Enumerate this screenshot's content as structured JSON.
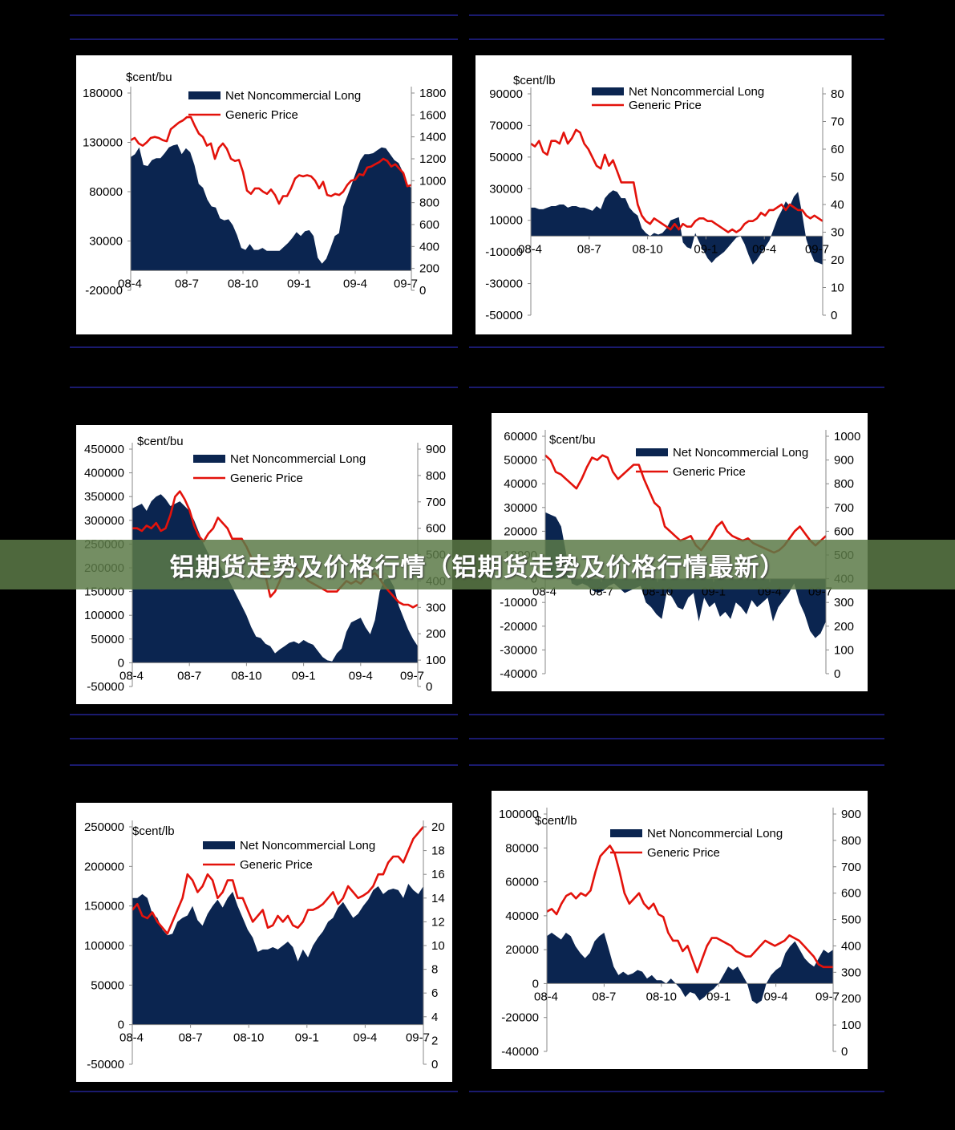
{
  "title": "铝期货走势及价格行情（铝期货走势及价格行情最新）",
  "colors": {
    "area": "#0b2550",
    "price": "#e3120b",
    "rule": "#1a1a6e",
    "background": "#000000"
  },
  "chart_data": [
    {
      "type": "area",
      "unit": "$cent/bu",
      "series": [
        {
          "name": "Net Noncommercial Long",
          "axis": "left",
          "values": [
            115000,
            118000,
            125000,
            107000,
            106000,
            112000,
            114000,
            114000,
            119000,
            125000,
            127000,
            128000,
            118000,
            124000,
            120000,
            107000,
            88000,
            84000,
            72000,
            65000,
            64000,
            53000,
            51000,
            52000,
            46000,
            36000,
            23000,
            21000,
            27000,
            21000,
            21000,
            23000,
            20000,
            20000,
            20000,
            20000,
            24000,
            28000,
            33000,
            39000,
            35000,
            40000,
            41000,
            35000,
            13000,
            7000,
            12000,
            23000,
            35000,
            38000,
            65000,
            76000,
            88000,
            100000,
            112000,
            118000,
            118000,
            119000,
            122000,
            125000,
            124000,
            118000,
            112000,
            109000,
            100000,
            87000,
            84000
          ]
        },
        {
          "name": "Generic Price",
          "axis": "right",
          "values": [
            1370,
            1390,
            1340,
            1320,
            1350,
            1390,
            1400,
            1390,
            1370,
            1360,
            1470,
            1500,
            1530,
            1550,
            1580,
            1580,
            1500,
            1430,
            1400,
            1320,
            1340,
            1200,
            1300,
            1340,
            1290,
            1200,
            1180,
            1190,
            1080,
            910,
            880,
            930,
            930,
            900,
            880,
            920,
            870,
            790,
            860,
            860,
            930,
            1020,
            1050,
            1040,
            1050,
            1040,
            1000,
            930,
            990,
            870,
            860,
            880,
            870,
            900,
            960,
            1000,
            1010,
            1060,
            1050,
            1120,
            1130,
            1150,
            1170,
            1200,
            1180,
            1130,
            1150,
            1110,
            1070,
            950,
            960
          ]
        }
      ],
      "x_ticks": [
        "08-4",
        "08-7",
        "08-10",
        "09-1",
        "09-4",
        "09-7"
      ],
      "y_left": {
        "min": -20000,
        "max": 180000,
        "ticks": [
          180000,
          130000,
          80000,
          30000,
          -20000
        ]
      },
      "y_right": {
        "min": 0,
        "max": 1800,
        "ticks": [
          1800,
          1600,
          1400,
          1200,
          1000,
          800,
          600,
          400,
          200,
          0
        ]
      }
    },
    {
      "type": "area",
      "unit": "$cent/lb",
      "series": [
        {
          "name": "Net Noncommercial Long",
          "axis": "left",
          "values": [
            18000,
            18000,
            17000,
            17000,
            18000,
            19000,
            19000,
            20000,
            20000,
            18000,
            19000,
            19000,
            18000,
            18000,
            17000,
            16000,
            19000,
            17000,
            24000,
            27000,
            29000,
            28000,
            24000,
            24000,
            18000,
            15000,
            13000,
            5000,
            2000,
            0,
            2000,
            1000,
            2000,
            5000,
            10000,
            11000,
            12000,
            -4000,
            -7000,
            -8000,
            2000,
            -4000,
            -9000,
            -14000,
            -17000,
            -14000,
            -12000,
            -10000,
            -7000,
            -4000,
            -1000,
            0,
            -5000,
            -12000,
            -18000,
            -15000,
            -11000,
            -7000,
            -3000,
            4000,
            11000,
            16000,
            22000,
            19000,
            25000,
            28000,
            14000,
            -2000,
            -10000,
            -16000,
            -17000,
            -18000
          ]
        },
        {
          "name": "Generic Price",
          "axis": "right",
          "values": [
            62,
            61,
            63,
            59,
            58,
            63,
            63,
            62,
            66,
            62,
            64,
            67,
            66,
            62,
            60,
            57,
            54,
            53,
            58,
            54,
            56,
            52,
            48,
            48,
            48,
            48,
            40,
            36,
            34,
            33,
            35,
            34,
            33,
            32,
            31,
            33,
            31,
            33,
            32,
            32,
            34,
            35,
            35,
            34,
            34,
            33,
            32,
            31,
            30,
            31,
            30,
            31,
            33,
            34,
            34,
            35,
            37,
            36,
            38,
            38,
            39,
            40,
            38,
            40,
            39,
            38,
            38,
            36,
            35,
            36,
            35,
            34
          ]
        }
      ],
      "x_ticks": [
        "08-4",
        "08-7",
        "08-10",
        "09-1",
        "09-4",
        "09-7"
      ],
      "y_left": {
        "min": -50000,
        "max": 90000,
        "ticks": [
          90000,
          70000,
          50000,
          30000,
          10000,
          -10000,
          -30000,
          -50000
        ]
      },
      "y_right": {
        "min": 0,
        "max": 80,
        "ticks": [
          80,
          70,
          60,
          50,
          40,
          30,
          20,
          10,
          0
        ]
      }
    },
    {
      "type": "area",
      "unit": "$cent/bu",
      "series": [
        {
          "name": "Net Noncommercial Long",
          "axis": "left",
          "values": [
            325000,
            330000,
            335000,
            320000,
            340000,
            350000,
            355000,
            345000,
            330000,
            335000,
            340000,
            330000,
            320000,
            300000,
            275000,
            250000,
            230000,
            215000,
            210000,
            195000,
            180000,
            160000,
            140000,
            120000,
            100000,
            75000,
            55000,
            52000,
            40000,
            35000,
            20000,
            28000,
            35000,
            42000,
            45000,
            40000,
            48000,
            42000,
            38000,
            25000,
            12000,
            5000,
            3000,
            20000,
            30000,
            65000,
            85000,
            90000,
            95000,
            75000,
            60000,
            90000,
            150000,
            175000,
            178000,
            160000,
            120000,
            95000,
            70000,
            50000,
            35000
          ]
        },
        {
          "name": "Generic Price",
          "axis": "right",
          "values": [
            600,
            600,
            590,
            610,
            600,
            620,
            590,
            600,
            650,
            720,
            740,
            710,
            670,
            610,
            570,
            550,
            580,
            600,
            640,
            620,
            600,
            560,
            560,
            560,
            530,
            490,
            460,
            440,
            420,
            340,
            360,
            400,
            450,
            470,
            460,
            440,
            420,
            400,
            390,
            380,
            370,
            360,
            360,
            360,
            380,
            400,
            390,
            400,
            390,
            410,
            420,
            430,
            410,
            380,
            360,
            340,
            320,
            310,
            310,
            300,
            310
          ]
        }
      ],
      "x_ticks": [
        "08-4",
        "08-7",
        "08-10",
        "09-1",
        "09-4",
        "09-7"
      ],
      "y_left": {
        "min": -50000,
        "max": 450000,
        "ticks": [
          450000,
          400000,
          350000,
          300000,
          250000,
          200000,
          150000,
          100000,
          50000,
          0,
          -50000
        ]
      },
      "y_right": {
        "min": 0,
        "max": 900,
        "ticks": [
          900,
          800,
          700,
          600,
          500,
          400,
          300,
          200,
          100,
          0
        ]
      }
    },
    {
      "type": "area",
      "unit": "$cent/bu",
      "series": [
        {
          "name": "Net Noncommercial Long",
          "axis": "left",
          "values": [
            28000,
            27000,
            26000,
            22000,
            10000,
            -2000,
            -3000,
            -2000,
            -3000,
            -5000,
            -6000,
            -5000,
            -3000,
            -2000,
            -4000,
            -6000,
            -5000,
            -4000,
            -3000,
            -10000,
            -12000,
            -15000,
            -17000,
            -5000,
            -8000,
            -12000,
            -13000,
            -8000,
            -6000,
            -18000,
            -8000,
            -12000,
            -10000,
            -16000,
            -14000,
            -17000,
            -10000,
            -12000,
            -15000,
            -9000,
            -12000,
            -10000,
            -8000,
            -18000,
            -12000,
            -9000,
            -6000,
            -2000,
            -10000,
            -15000,
            -22000,
            -25000,
            -23000,
            -18000
          ]
        },
        {
          "name": "Generic Price",
          "axis": "right",
          "values": [
            920,
            900,
            850,
            840,
            820,
            800,
            780,
            820,
            870,
            910,
            900,
            920,
            910,
            850,
            820,
            840,
            860,
            880,
            880,
            820,
            770,
            720,
            700,
            620,
            600,
            580,
            560,
            570,
            580,
            540,
            520,
            550,
            580,
            620,
            640,
            600,
            580,
            570,
            560,
            570,
            550,
            540,
            530,
            520,
            510,
            520,
            540,
            570,
            600,
            620,
            590,
            560,
            540,
            560,
            580
          ]
        }
      ],
      "x_ticks": [
        "08-4",
        "08-7",
        "08-10",
        "09-1",
        "09-4",
        "09-7"
      ],
      "y_left": {
        "min": -40000,
        "max": 60000,
        "ticks": [
          60000,
          50000,
          40000,
          30000,
          20000,
          10000,
          0,
          -10000,
          -20000,
          -30000,
          -40000
        ]
      },
      "y_right": {
        "min": 0,
        "max": 1000,
        "ticks": [
          1000,
          900,
          800,
          700,
          600,
          500,
          400,
          300,
          200,
          100,
          0
        ]
      }
    },
    {
      "type": "area",
      "unit": "$cent/lb",
      "series": [
        {
          "name": "Net Noncommercial Long",
          "axis": "left",
          "values": [
            160000,
            160000,
            165000,
            160000,
            140000,
            135000,
            120000,
            113000,
            115000,
            130000,
            135000,
            138000,
            150000,
            132000,
            125000,
            140000,
            150000,
            158000,
            148000,
            160000,
            168000,
            150000,
            135000,
            120000,
            110000,
            92000,
            95000,
            95000,
            98000,
            95000,
            100000,
            105000,
            98000,
            80000,
            95000,
            85000,
            100000,
            110000,
            118000,
            130000,
            135000,
            148000,
            155000,
            145000,
            135000,
            140000,
            150000,
            158000,
            170000,
            175000,
            165000,
            170000,
            172000,
            170000,
            160000,
            178000,
            170000,
            165000,
            175000
          ]
        },
        {
          "name": "Generic Price",
          "axis": "right",
          "values": [
            13,
            13.5,
            12.5,
            12.3,
            12.8,
            12,
            11.5,
            11,
            12,
            13,
            14,
            16,
            15.5,
            14.5,
            15,
            16,
            15.5,
            14,
            14.5,
            15.5,
            15.5,
            14,
            14,
            13,
            12,
            12.5,
            13,
            11.5,
            11.7,
            12.5,
            12,
            12.5,
            11.7,
            11.5,
            12,
            13,
            13,
            13.2,
            13.5,
            14,
            14.5,
            13.5,
            14,
            15,
            14.5,
            14,
            14.2,
            14.5,
            15,
            16,
            16,
            17,
            17.5,
            17.5,
            17,
            18,
            19,
            19.5,
            20
          ]
        }
      ],
      "x_ticks": [
        "08-4",
        "08-7",
        "08-10",
        "09-1",
        "09-4",
        "09-7"
      ],
      "y_left": {
        "min": -50000,
        "max": 250000,
        "ticks": [
          250000,
          200000,
          150000,
          100000,
          50000,
          0,
          -50000
        ]
      },
      "y_right": {
        "min": 0,
        "max": 20,
        "ticks": [
          20,
          18,
          16,
          14,
          12,
          10,
          8,
          6,
          4,
          2,
          0
        ]
      }
    },
    {
      "type": "area",
      "unit": "$cent/lb",
      "series": [
        {
          "name": "Net Noncommercial Long",
          "axis": "left",
          "values": [
            28000,
            30000,
            28000,
            26000,
            30000,
            28000,
            22000,
            18000,
            15000,
            18000,
            25000,
            28000,
            30000,
            20000,
            10000,
            5000,
            7000,
            5000,
            6000,
            8000,
            7000,
            3000,
            5000,
            2000,
            2000,
            0,
            3000,
            0,
            -3000,
            -8000,
            -5000,
            -6000,
            -10000,
            -8000,
            -5000,
            -3000,
            0,
            5000,
            10000,
            8000,
            10000,
            5000,
            0,
            -10000,
            -12000,
            -10000,
            0,
            5000,
            8000,
            10000,
            18000,
            22000,
            25000,
            20000,
            15000,
            12000,
            10000,
            15000,
            20000,
            18000,
            20000
          ]
        },
        {
          "name": "Generic Price",
          "axis": "right",
          "values": [
            530,
            540,
            520,
            560,
            590,
            600,
            580,
            600,
            590,
            610,
            680,
            740,
            760,
            780,
            750,
            680,
            600,
            560,
            580,
            600,
            560,
            540,
            560,
            520,
            510,
            450,
            420,
            420,
            380,
            400,
            350,
            300,
            350,
            400,
            430,
            430,
            420,
            410,
            400,
            380,
            370,
            360,
            360,
            380,
            400,
            420,
            410,
            400,
            410,
            420,
            440,
            430,
            420,
            400,
            380,
            360,
            330,
            320,
            320,
            320
          ]
        }
      ],
      "x_ticks": [
        "08-4",
        "08-7",
        "08-10",
        "09-1",
        "09-4",
        "09-7"
      ],
      "y_left": {
        "min": -40000,
        "max": 100000,
        "ticks": [
          100000,
          80000,
          60000,
          40000,
          20000,
          0,
          -20000,
          -40000
        ]
      },
      "y_right": {
        "min": 0,
        "max": 900,
        "ticks": [
          900,
          800,
          700,
          600,
          500,
          400,
          300,
          200,
          100,
          0
        ]
      }
    }
  ]
}
